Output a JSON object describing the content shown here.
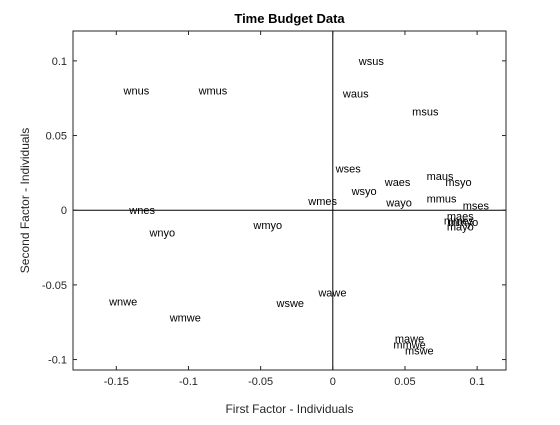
{
  "chart_data": {
    "type": "scatter",
    "title": "Time Budget Data",
    "xlabel": "First Factor - Individuals",
    "ylabel": "Second Factor - Individuals",
    "xlim": [
      -0.18,
      0.12
    ],
    "ylim": [
      -0.107,
      0.12
    ],
    "xticks": [
      -0.15,
      -0.1,
      -0.05,
      0,
      0.05,
      0.1
    ],
    "xtick_labels": [
      "-0.15",
      "-0.1",
      "-0.05",
      "0",
      "0.05",
      "0.1"
    ],
    "yticks": [
      -0.1,
      -0.05,
      0,
      0.05,
      0.1
    ],
    "ytick_labels": [
      "-0.1",
      "-0.05",
      "0",
      "0.05",
      "0.1"
    ],
    "grid": false,
    "reference_lines": {
      "x": 0,
      "y": 0
    },
    "points": [
      {
        "label": "wsus",
        "x": 0.018,
        "y": 0.1
      },
      {
        "label": "wnus",
        "x": -0.145,
        "y": 0.08
      },
      {
        "label": "wmus",
        "x": -0.093,
        "y": 0.08
      },
      {
        "label": "waus",
        "x": 0.007,
        "y": 0.078
      },
      {
        "label": "msus",
        "x": 0.055,
        "y": 0.066
      },
      {
        "label": "wses",
        "x": 0.002,
        "y": 0.028
      },
      {
        "label": "maus",
        "x": 0.065,
        "y": 0.023
      },
      {
        "label": "waes",
        "x": 0.036,
        "y": 0.019
      },
      {
        "label": "msyo",
        "x": 0.078,
        "y": 0.019
      },
      {
        "label": "wsyo",
        "x": 0.013,
        "y": 0.013
      },
      {
        "label": "mmus",
        "x": 0.065,
        "y": 0.008
      },
      {
        "label": "wmes",
        "x": -0.017,
        "y": 0.006
      },
      {
        "label": "wayo",
        "x": 0.037,
        "y": 0.005
      },
      {
        "label": "mses",
        "x": 0.09,
        "y": 0.003
      },
      {
        "label": "wnes",
        "x": -0.141,
        "y": 0.0
      },
      {
        "label": "maes",
        "x": 0.079,
        "y": -0.004
      },
      {
        "label": "mmes",
        "x": 0.077,
        "y": -0.007
      },
      {
        "label": "mmyo",
        "x": 0.08,
        "y": -0.008
      },
      {
        "label": "mayo",
        "x": 0.079,
        "y": -0.011
      },
      {
        "label": "wmyo",
        "x": -0.055,
        "y": -0.01
      },
      {
        "label": "wnyo",
        "x": -0.127,
        "y": -0.015
      },
      {
        "label": "wawe",
        "x": -0.01,
        "y": -0.055
      },
      {
        "label": "wnwe",
        "x": -0.155,
        "y": -0.061
      },
      {
        "label": "wswe",
        "x": -0.039,
        "y": -0.062
      },
      {
        "label": "wmwe",
        "x": -0.113,
        "y": -0.072
      },
      {
        "label": "mawe",
        "x": 0.043,
        "y": -0.086
      },
      {
        "label": "mmwe",
        "x": 0.042,
        "y": -0.09
      },
      {
        "label": "mswe",
        "x": 0.05,
        "y": -0.094
      }
    ]
  }
}
